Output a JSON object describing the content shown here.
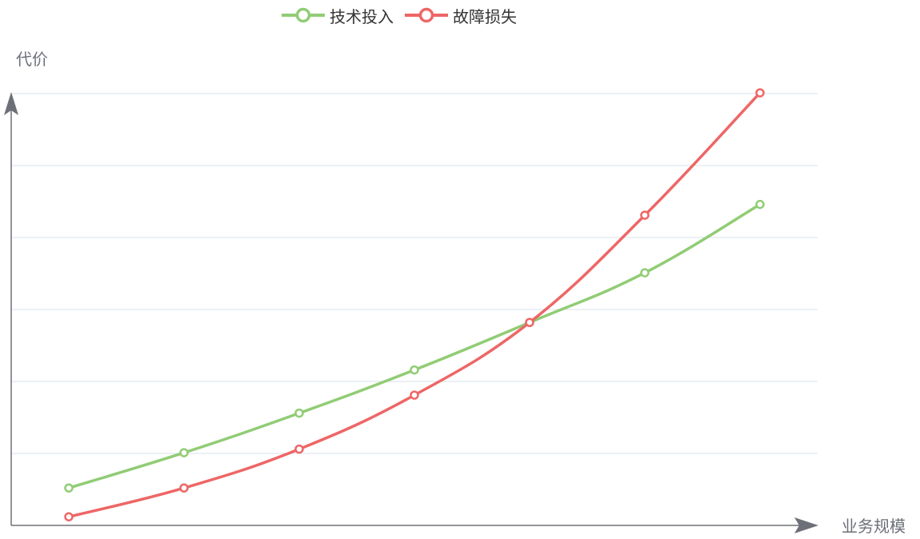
{
  "chart_data": {
    "type": "line",
    "title": "",
    "xlabel": "业务规模",
    "ylabel": "代价",
    "x": [
      1,
      2,
      3,
      4,
      5,
      6,
      7
    ],
    "ylim": [
      0,
      6
    ],
    "grid": true,
    "legend_position": "top-center",
    "series": [
      {
        "name": "技术投入",
        "color": "#91cc75",
        "values": [
          0.52,
          1.01,
          1.56,
          2.16,
          2.82,
          3.51,
          4.46
        ]
      },
      {
        "name": "故障损失",
        "color": "#ee6666",
        "values": [
          0.12,
          0.52,
          1.06,
          1.81,
          2.82,
          4.31,
          6.01
        ]
      }
    ]
  },
  "colors": {
    "axis": "#6e7079",
    "grid": "#e0e6f1",
    "background": "#ffffff"
  }
}
